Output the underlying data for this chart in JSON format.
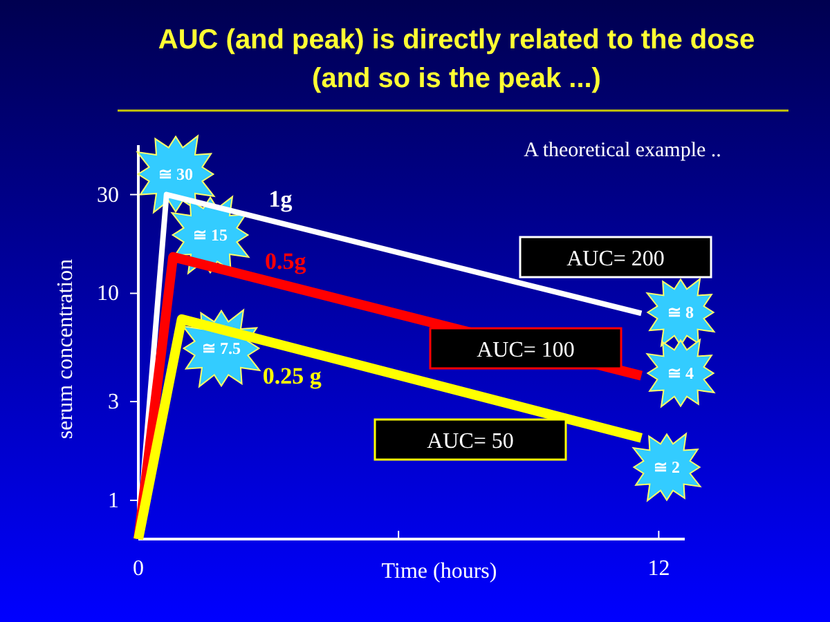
{
  "chart_data": {
    "type": "line",
    "title": "AUC (and peak) is directly related to the dose",
    "subtitle": "(and so is the peak ...)",
    "xlabel": "Time (hours)",
    "ylabel": "serum concentration",
    "log": "y",
    "xlim": [
      0,
      12.6
    ],
    "xticks": [
      0,
      {
        "value": 6,
        "label": null
      },
      12
    ],
    "ylim": [
      0.65,
      52
    ],
    "yticks": [
      1,
      3,
      10,
      30
    ],
    "grid": false,
    "marker": "none",
    "line_style": "solid",
    "series": [
      {
        "name": "1g",
        "color": "#ffffff",
        "x": [
          0,
          0.65,
          11.6
        ],
        "values": [
          0.65,
          30,
          8
        ]
      },
      {
        "name": "0.5g",
        "color": "#ff0000",
        "x": [
          0,
          0.8,
          11.6
        ],
        "values": [
          0.65,
          15,
          4
        ]
      },
      {
        "name": "0.25 g",
        "color": "#ffff00",
        "x": [
          0,
          1.0,
          11.6
        ],
        "values": [
          0.65,
          7.5,
          2
        ]
      }
    ],
    "annotations": [
      "A theoretical example ..",
      "≅ 30",
      "≅ 15",
      "≅ 7.5",
      "≅ 8",
      "≅ 4",
      "≅ 2",
      "AUC= 200",
      "AUC= 100",
      "AUC= 50"
    ]
  }
}
